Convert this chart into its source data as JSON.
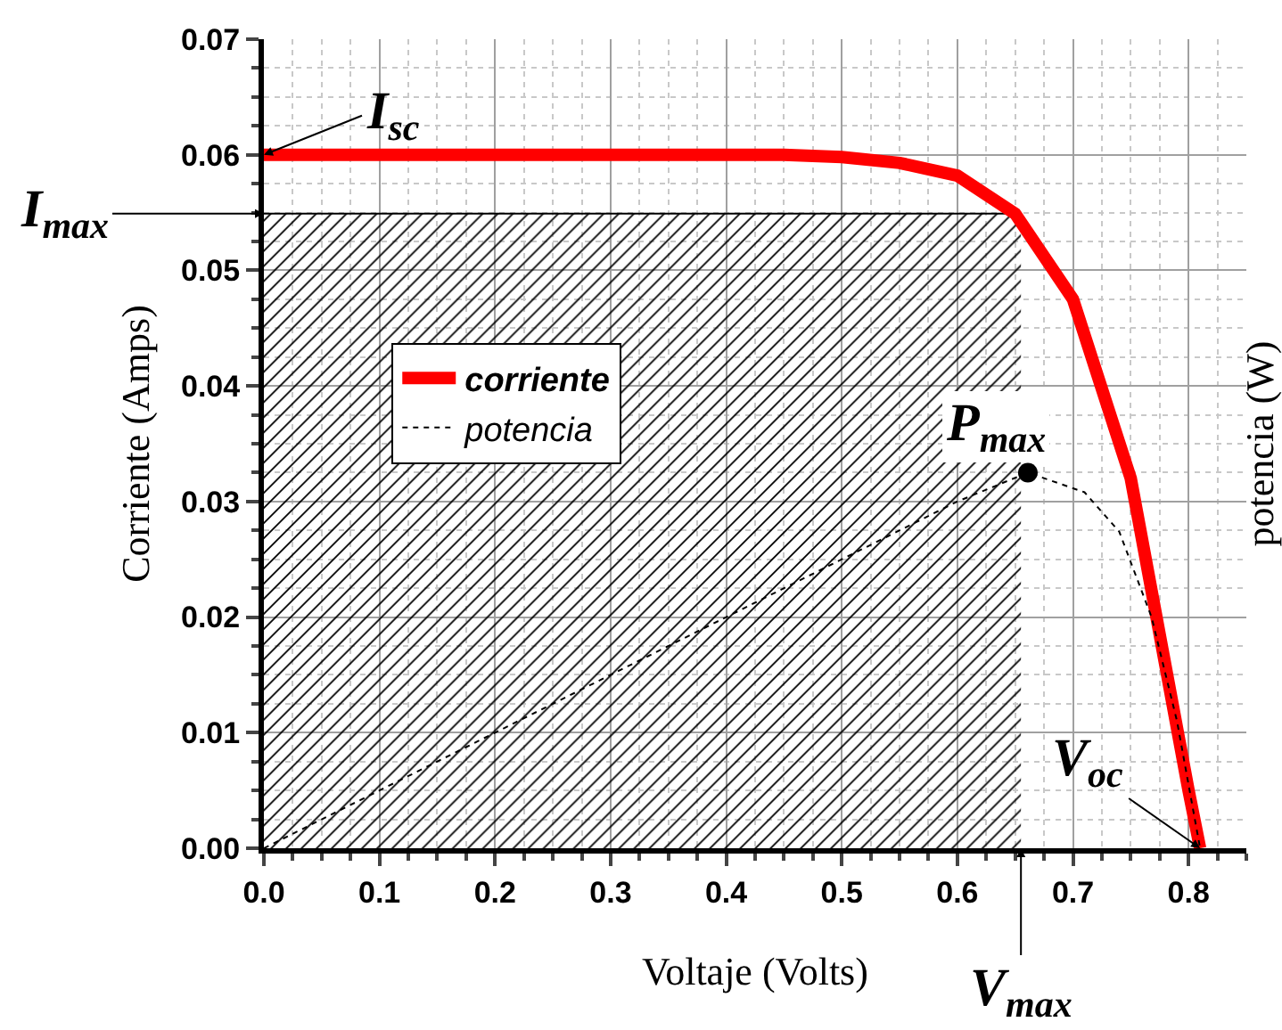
{
  "chart_data": {
    "type": "line",
    "xlabel": "Voltaje (Volts)",
    "ylabel": "Corriente (Amps)",
    "y2label": "potencia (W)",
    "xlim": [
      0,
      0.85
    ],
    "xticks": [
      {
        "value": 0,
        "label": "0.0"
      },
      0.1,
      0.2,
      0.3,
      0.4,
      0.5,
      0.6,
      0.7,
      0.8
    ],
    "ylim": [
      0,
      0.07
    ],
    "yticks": [
      {
        "value": 0,
        "label": "0.00"
      },
      0.01,
      0.02,
      0.03,
      0.04,
      0.05,
      0.06,
      0.07
    ],
    "grid": true,
    "legend": "left",
    "series": [
      {
        "type": "area",
        "color": "#000000",
        "x": [
          0,
          0.655
        ],
        "values": [
          0.0549,
          0.0549
        ]
      },
      {
        "name": "corriente",
        "color": "#ff0000",
        "line_style": "solid",
        "x": [
          0,
          0.1,
          0.2,
          0.3,
          0.4,
          0.45,
          0.5,
          0.55,
          0.6,
          0.65,
          0.7,
          0.75,
          0.8,
          0.81
        ],
        "values": [
          0.06,
          0.06,
          0.06,
          0.06,
          0.06,
          0.06,
          0.0598,
          0.0593,
          0.0582,
          0.0549,
          0.0475,
          0.032,
          0.005,
          0
        ]
      },
      {
        "name": "potencia",
        "color": "#000000",
        "line_style": "dotted",
        "x": [
          0,
          0.1,
          0.2,
          0.3,
          0.4,
          0.5,
          0.6,
          0.661,
          0.71,
          0.74,
          0.768,
          0.79,
          0.81
        ],
        "values": [
          0,
          0.005,
          0.01,
          0.015,
          0.02,
          0.025,
          0.03,
          0.0325,
          0.0308,
          0.0274,
          0.02,
          0.011,
          0
        ]
      },
      {
        "type": "scatter",
        "color": "#000000",
        "marker": "circle",
        "x": [
          0.661
        ],
        "values": [
          0.0325
        ]
      }
    ],
    "annotations": [
      {
        "text": "I$_{sc}$",
        "x": 0,
        "y": 0.06
      },
      {
        "text": "I$_{max}$",
        "x": 0,
        "y": 0.0549
      },
      {
        "text": "P$_{max}$",
        "x": 0.661,
        "y": 0.0325
      },
      {
        "text": "V$_{max}$",
        "x": 0.655,
        "y": 0
      },
      {
        "text": "V$_{oc}$",
        "x": 0.81,
        "y": 0
      }
    ]
  }
}
